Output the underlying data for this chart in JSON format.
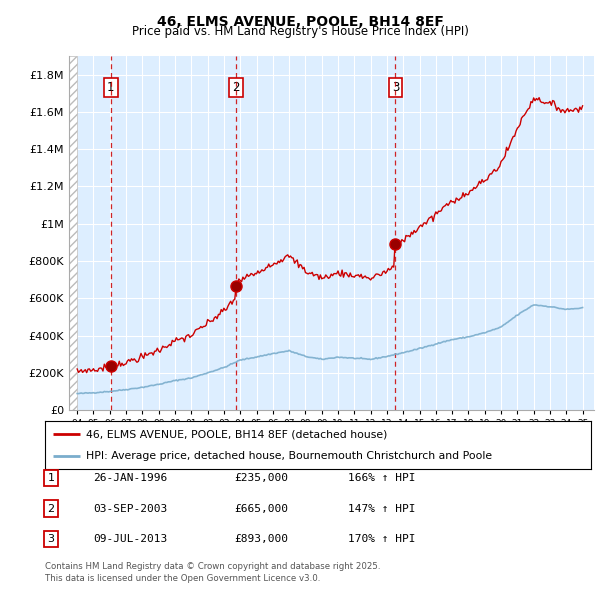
{
  "title": "46, ELMS AVENUE, POOLE, BH14 8EF",
  "subtitle": "Price paid vs. HM Land Registry's House Price Index (HPI)",
  "legend_line1": "46, ELMS AVENUE, POOLE, BH14 8EF (detached house)",
  "legend_line2": "HPI: Average price, detached house, Bournemouth Christchurch and Poole",
  "footer1": "Contains HM Land Registry data © Crown copyright and database right 2025.",
  "footer2": "This data is licensed under the Open Government Licence v3.0.",
  "transactions": [
    {
      "num": 1,
      "date": "26-JAN-1996",
      "price": 235000,
      "hpi": "166% ↑ HPI",
      "year": 1996.07
    },
    {
      "num": 2,
      "date": "03-SEP-2003",
      "price": 665000,
      "hpi": "147% ↑ HPI",
      "year": 2003.75
    },
    {
      "num": 3,
      "date": "09-JUL-2013",
      "price": 893000,
      "hpi": "170% ↑ HPI",
      "year": 2013.52
    }
  ],
  "price_color": "#cc0000",
  "hpi_color": "#7aadcc",
  "background_color": "#ddeeff",
  "ylim": [
    0,
    1900000
  ],
  "yticks": [
    0,
    200000,
    400000,
    600000,
    800000,
    1000000,
    1200000,
    1400000,
    1600000,
    1800000
  ],
  "ytick_labels": [
    "£0",
    "£200K",
    "£400K",
    "£600K",
    "£800K",
    "£1M",
    "£1.2M",
    "£1.4M",
    "£1.6M",
    "£1.8M"
  ],
  "xlim_start": 1993.5,
  "xlim_end": 2025.7
}
